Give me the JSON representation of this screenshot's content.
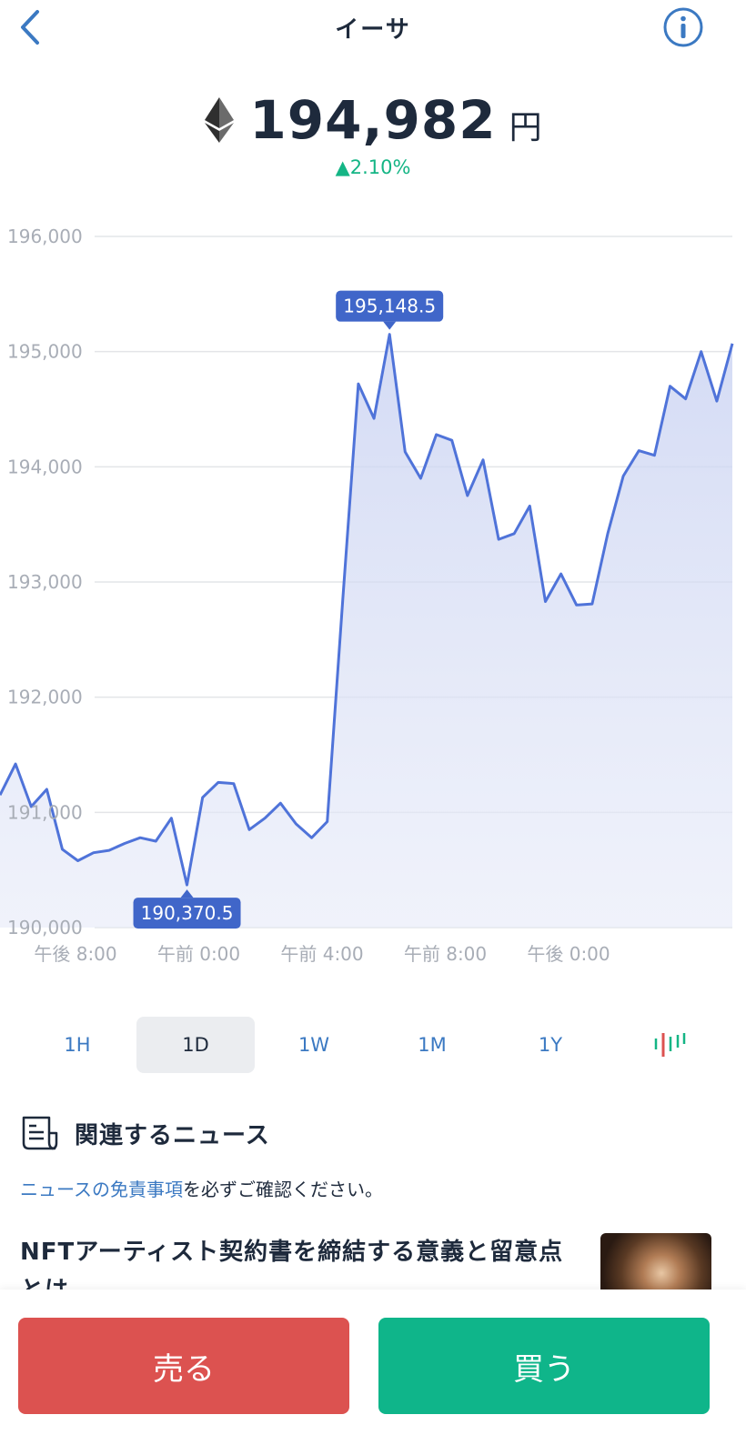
{
  "header": {
    "title": "イーサ",
    "back_icon": "chevron-left-icon",
    "info_icon": "info-circle-icon"
  },
  "asset": {
    "icon": "ethereum-icon",
    "price": "194,982",
    "currency": "円",
    "change": "▲2.10%",
    "change_color": "#14b585"
  },
  "chart_data": {
    "type": "area",
    "ylim": [
      190000,
      196000
    ],
    "y_ticks": [
      "190,000",
      "191,000",
      "192,000",
      "193,000",
      "194,000",
      "195,000",
      "196,000"
    ],
    "x_ticks": [
      "午後 8:00",
      "午前 0:00",
      "午前 4:00",
      "午前 8:00",
      "午後 0:00"
    ],
    "series": [
      {
        "color": "#4f73d9",
        "values": [
          191150,
          191420,
          191050,
          191200,
          190680,
          190580,
          190650,
          190670,
          190730,
          190780,
          190750,
          190950,
          190370,
          191130,
          191260,
          191250,
          190850,
          190950,
          191080,
          190900,
          190780,
          190920,
          192850,
          194720,
          194420,
          195150,
          194130,
          193900,
          194280,
          194230,
          193750,
          194060,
          193370,
          193420,
          193660,
          192830,
          193070,
          192800,
          192810,
          193420,
          193920,
          194140,
          194100,
          194700,
          194590,
          195000,
          194570,
          195070
        ]
      }
    ],
    "annotations": [
      {
        "label": "195,148.5",
        "index": 25,
        "position": "above"
      },
      {
        "label": "190,370.5",
        "index": 12,
        "position": "below"
      }
    ],
    "grid": true
  },
  "ranges": {
    "items": [
      "1H",
      "1D",
      "1W",
      "1M",
      "1Y"
    ],
    "active": "1D",
    "candle_icon": "candlestick-chart-icon"
  },
  "news": {
    "heading": "関連するニュース",
    "heading_icon": "newspaper-icon",
    "disclaimer_link": "ニュースの免責事項",
    "disclaimer_rest": "を必ずご確認ください。",
    "articles": [
      {
        "title": "NFTアーティスト契約書を締結する意義と留意点とは"
      }
    ]
  },
  "actions": {
    "sell": "売る",
    "buy": "買う",
    "sell_color": "#dc5250",
    "buy_color": "#0fb58a"
  }
}
